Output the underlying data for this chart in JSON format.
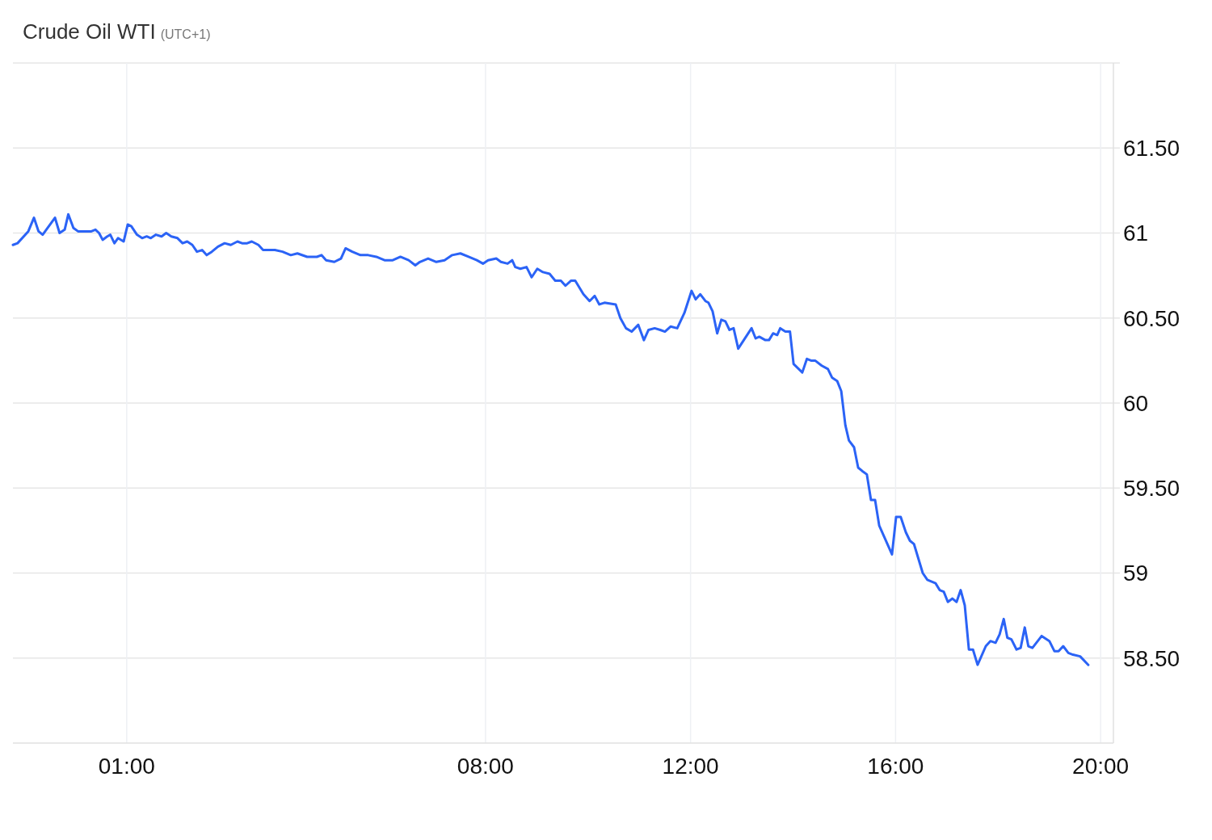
{
  "chart_data": {
    "type": "line",
    "title": "Crude Oil WTI",
    "subtitle": "(UTC+1)",
    "x": [
      -1.22,
      -1.13,
      -0.92,
      -0.81,
      -0.72,
      -0.64,
      -0.4,
      -0.31,
      -0.21,
      -0.14,
      -0.04,
      0.05,
      0.31,
      0.39,
      0.46,
      0.53,
      0.62,
      0.68,
      0.76,
      0.83,
      0.94,
      1.02,
      1.09,
      1.2,
      1.3,
      1.39,
      1.47,
      1.57,
      1.68,
      1.77,
      1.87,
      1.99,
      2.09,
      2.18,
      2.28,
      2.37,
      2.47,
      2.56,
      2.66,
      2.78,
      2.91,
      3.03,
      3.16,
      3.25,
      3.35,
      3.44,
      3.57,
      3.66,
      3.89,
      4.04,
      4.2,
      4.33,
      4.52,
      4.71,
      4.8,
      4.89,
      5.05,
      5.18,
      5.27,
      5.4,
      5.56,
      5.71,
      5.87,
      6.03,
      6.19,
      6.34,
      6.5,
      6.63,
      6.72,
      6.88,
      7.04,
      7.2,
      7.35,
      7.51,
      7.67,
      7.83,
      7.95,
      8.05,
      8.21,
      8.3,
      8.43,
      8.52,
      8.58,
      8.68,
      8.8,
      8.9,
      9.01,
      9.12,
      9.25,
      9.36,
      9.47,
      9.56,
      9.67,
      9.75,
      9.91,
      10.03,
      10.13,
      10.22,
      10.32,
      10.54,
      10.63,
      10.74,
      10.85,
      10.98,
      11.09,
      11.18,
      11.3,
      11.41,
      11.5,
      11.61,
      11.74,
      11.88,
      12.02,
      12.1,
      12.19,
      12.29,
      12.35,
      12.43,
      12.52,
      12.6,
      12.68,
      12.76,
      12.84,
      12.93,
      13.19,
      13.27,
      13.34,
      13.46,
      13.53,
      13.61,
      13.69,
      13.75,
      13.85,
      13.94,
      14.01,
      14.18,
      14.27,
      14.35,
      14.43,
      14.56,
      14.68,
      14.76,
      14.86,
      14.94,
      15.02,
      15.09,
      15.19,
      15.27,
      15.35,
      15.44,
      15.52,
      15.6,
      15.68,
      15.93,
      16.01,
      16.1,
      16.2,
      16.28,
      16.36,
      16.53,
      16.62,
      16.78,
      16.86,
      16.94,
      17.02,
      17.11,
      17.19,
      17.27,
      17.35,
      17.43,
      17.51,
      17.6,
      17.76,
      17.85,
      17.95,
      18.03,
      18.11,
      18.18,
      18.26,
      18.36,
      18.44,
      18.52,
      18.59,
      18.67,
      18.85,
      19.0,
      19.1,
      19.18,
      19.27,
      19.37,
      19.46,
      19.6,
      19.76
    ],
    "series": [
      {
        "color": "#2b63f6",
        "values": [
          60.93,
          60.94,
          61.01,
          61.09,
          61.01,
          60.99,
          61.09,
          61.0,
          61.02,
          61.11,
          61.03,
          61.01,
          61.01,
          61.02,
          61.0,
          60.96,
          60.98,
          60.99,
          60.94,
          60.97,
          60.95,
          61.05,
          61.04,
          60.99,
          60.97,
          60.98,
          60.97,
          60.99,
          60.98,
          61.0,
          60.98,
          60.97,
          60.94,
          60.95,
          60.93,
          60.89,
          60.9,
          60.87,
          60.89,
          60.92,
          60.94,
          60.93,
          60.95,
          60.94,
          60.94,
          60.95,
          60.93,
          60.9,
          60.9,
          60.89,
          60.87,
          60.88,
          60.86,
          60.86,
          60.87,
          60.84,
          60.83,
          60.85,
          60.91,
          60.89,
          60.87,
          60.87,
          60.86,
          60.84,
          60.84,
          60.86,
          60.84,
          60.81,
          60.83,
          60.85,
          60.83,
          60.84,
          60.87,
          60.88,
          60.86,
          60.84,
          60.82,
          60.84,
          60.85,
          60.83,
          60.82,
          60.84,
          60.8,
          60.79,
          60.8,
          60.74,
          60.79,
          60.77,
          60.76,
          60.72,
          60.72,
          60.69,
          60.72,
          60.72,
          60.64,
          60.6,
          60.63,
          60.58,
          60.59,
          60.58,
          60.5,
          60.44,
          60.42,
          60.46,
          60.37,
          60.43,
          60.44,
          60.43,
          60.42,
          60.45,
          60.44,
          60.53,
          60.66,
          60.61,
          60.64,
          60.6,
          60.59,
          60.54,
          60.41,
          60.49,
          60.48,
          60.43,
          60.44,
          60.32,
          60.44,
          60.38,
          60.39,
          60.37,
          60.37,
          60.41,
          60.4,
          60.44,
          60.42,
          60.42,
          60.23,
          60.18,
          60.26,
          60.25,
          60.25,
          60.22,
          60.2,
          60.15,
          60.13,
          60.07,
          59.87,
          59.78,
          59.74,
          59.62,
          59.6,
          59.58,
          59.43,
          59.43,
          59.28,
          59.11,
          59.33,
          59.33,
          59.24,
          59.19,
          59.17,
          59.0,
          58.96,
          58.94,
          58.9,
          58.89,
          58.83,
          58.85,
          58.83,
          58.9,
          58.81,
          58.55,
          58.55,
          58.46,
          58.57,
          58.6,
          58.59,
          58.64,
          58.73,
          58.62,
          58.61,
          58.55,
          58.56,
          58.68,
          58.57,
          58.56,
          58.63,
          58.6,
          58.54,
          58.54,
          58.57,
          58.53,
          58.52,
          58.51,
          58.46
        ]
      }
    ],
    "xlim": [
      -1.22,
      20.25
    ],
    "ylim": [
      58,
      62
    ],
    "xticks": [
      {
        "value": 1,
        "label": "01:00"
      },
      {
        "value": 8,
        "label": "08:00"
      },
      {
        "value": 12,
        "label": "12:00"
      },
      {
        "value": 16,
        "label": "16:00"
      },
      {
        "value": 20,
        "label": "20:00"
      }
    ],
    "yticks": [
      {
        "value": 58.5,
        "label": "58.50"
      },
      59,
      {
        "value": 59.5,
        "label": "59.50"
      },
      60,
      {
        "value": 60.5,
        "label": "60.50"
      },
      61,
      {
        "value": 61.5,
        "label": "61.50"
      }
    ],
    "grid": true
  }
}
